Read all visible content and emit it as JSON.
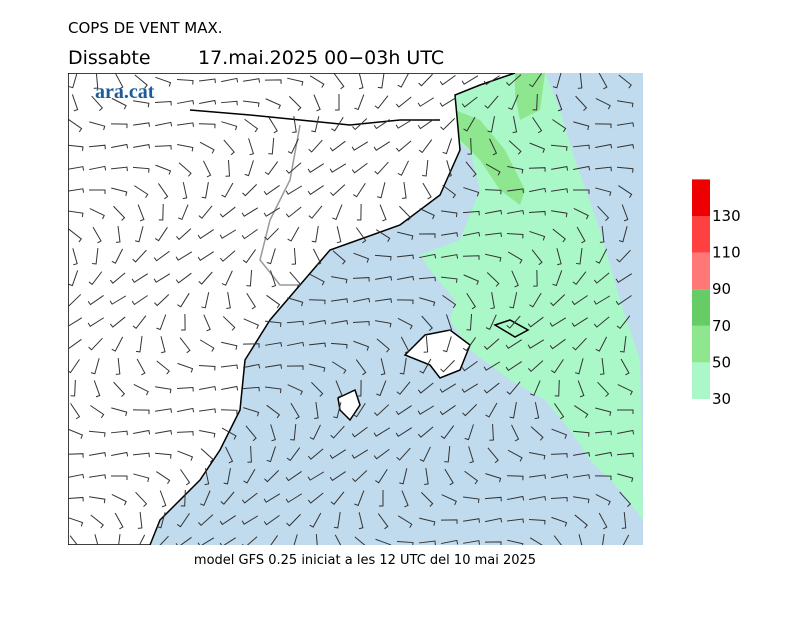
{
  "header": {
    "title": "COPS DE VENT MAX.",
    "day": "Dissabte",
    "time": "17.mai.2025 00−03h UTC",
    "logo": "ara.cat"
  },
  "footer": "model GFS 0.25 iniciat a les 12 UTC del 10 mai 2025",
  "legend": {
    "ticks": [
      30,
      50,
      70,
      90,
      110,
      130
    ],
    "colors": [
      "#aaf7c8",
      "#8ee68e",
      "#66cc66",
      "#ff7777",
      "#ff4040",
      "#ee0000"
    ]
  }
}
